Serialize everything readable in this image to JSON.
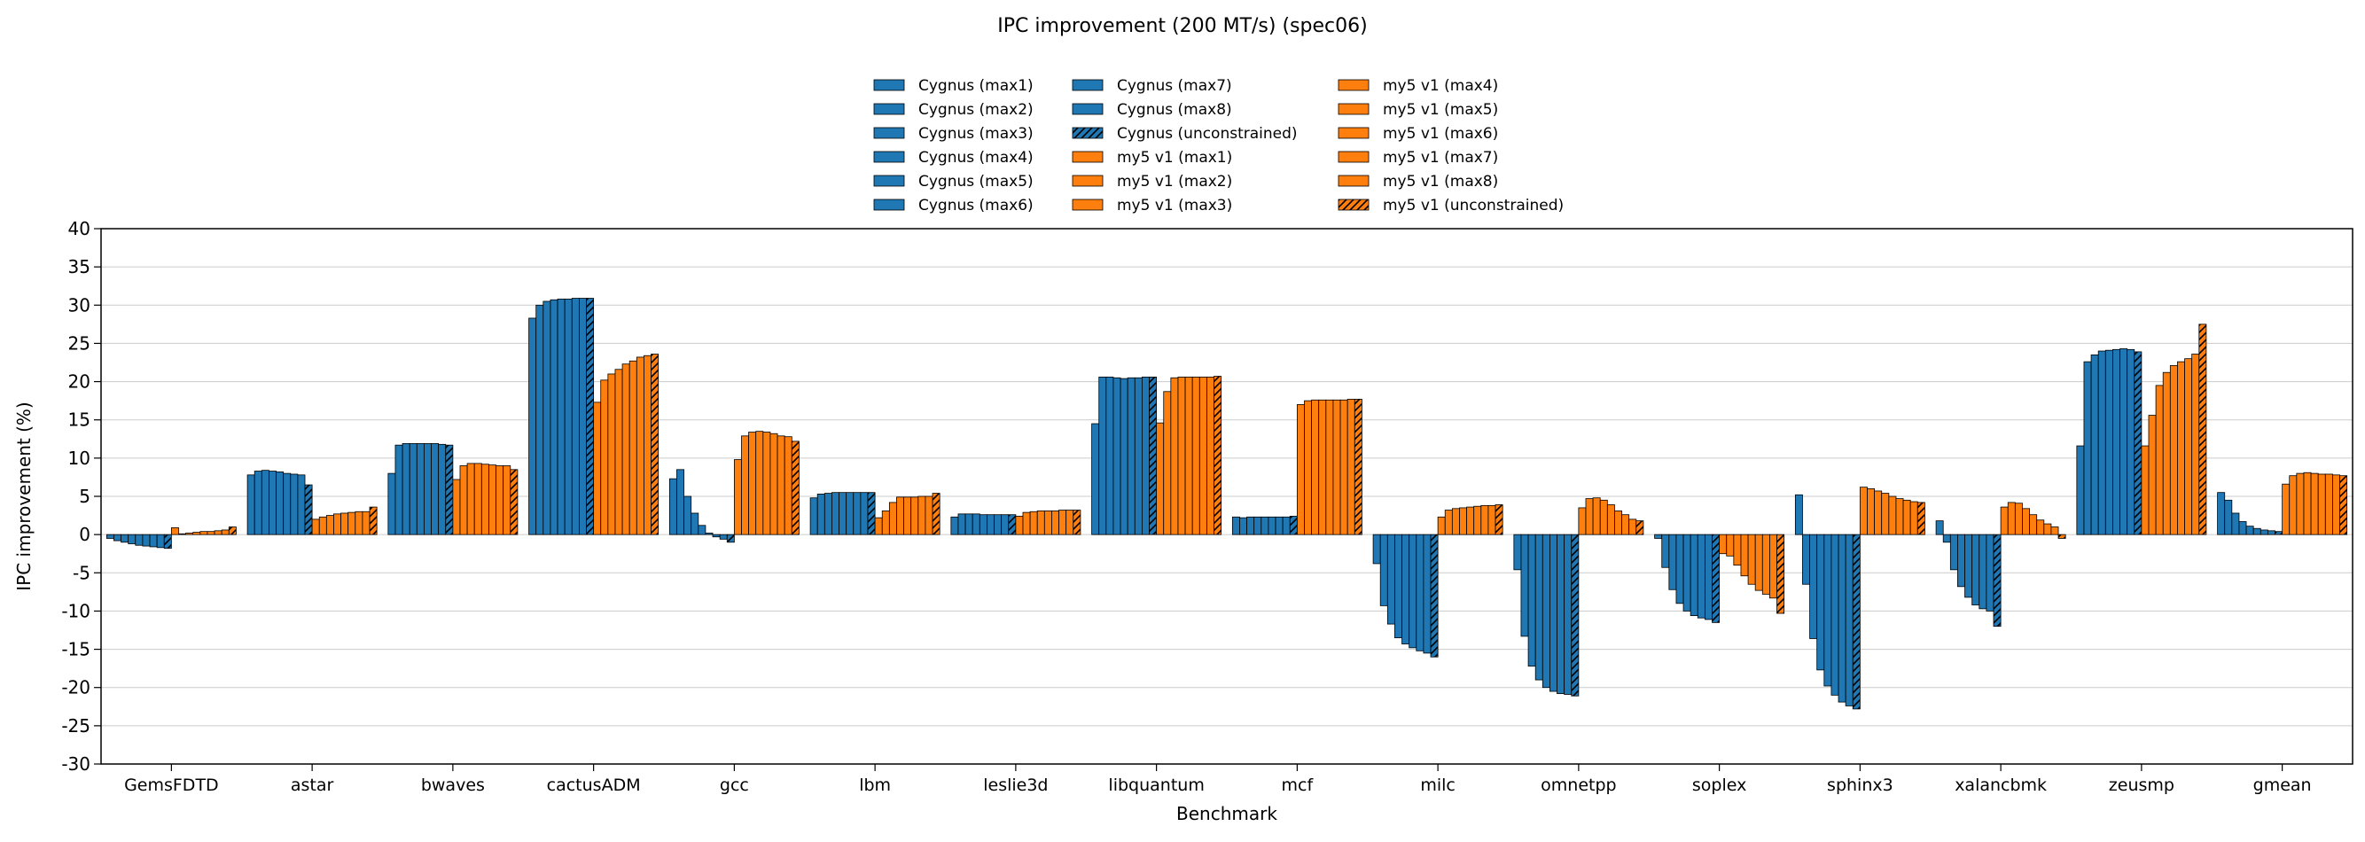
{
  "chart_data": {
    "type": "bar",
    "title": "IPC improvement (200 MT/s) (spec06)",
    "xlabel": "Benchmark",
    "ylabel": "IPC improvement (%)",
    "ylim": [
      -30,
      40
    ],
    "yticks": [
      -30,
      -25,
      -20,
      -15,
      -10,
      -5,
      0,
      5,
      10,
      15,
      20,
      25,
      30,
      35,
      40
    ],
    "grid": "horizontal",
    "legend_placement": "top-center",
    "colors": {
      "Cygnus": "#1f77b4",
      "my5 v1": "#ff7f0e"
    },
    "categories": [
      "GemsFDTD",
      "astar",
      "bwaves",
      "cactusADM",
      "gcc",
      "lbm",
      "leslie3d",
      "libquantum",
      "mcf",
      "milc",
      "omnetpp",
      "soplex",
      "sphinx3",
      "xalancbmk",
      "zeusmp",
      "gmean"
    ],
    "series": [
      {
        "name": "Cygnus (max1)",
        "group": "Cygnus",
        "hatch": false,
        "values": [
          -0.5,
          7.8,
          8.0,
          28.3,
          7.3,
          4.8,
          2.3,
          14.5,
          2.3,
          -3.8,
          -4.6,
          -0.5,
          5.2,
          1.8,
          11.6,
          5.5
        ]
      },
      {
        "name": "Cygnus (max2)",
        "group": "Cygnus",
        "hatch": false,
        "values": [
          -0.8,
          8.3,
          11.7,
          30.0,
          8.5,
          5.3,
          2.7,
          20.6,
          2.2,
          -9.3,
          -13.3,
          -4.3,
          -6.5,
          -1.0,
          22.6,
          4.5
        ]
      },
      {
        "name": "Cygnus (max3)",
        "group": "Cygnus",
        "hatch": false,
        "values": [
          -1.0,
          8.4,
          11.9,
          30.5,
          5.0,
          5.4,
          2.7,
          20.6,
          2.3,
          -11.7,
          -17.2,
          -7.2,
          -13.6,
          -4.6,
          23.5,
          2.8
        ]
      },
      {
        "name": "Cygnus (max4)",
        "group": "Cygnus",
        "hatch": false,
        "values": [
          -1.2,
          8.3,
          11.9,
          30.7,
          2.8,
          5.5,
          2.7,
          20.5,
          2.3,
          -13.5,
          -19.0,
          -9.0,
          -17.7,
          -6.8,
          24.0,
          1.7
        ]
      },
      {
        "name": "Cygnus (max5)",
        "group": "Cygnus",
        "hatch": false,
        "values": [
          -1.4,
          8.2,
          11.9,
          30.8,
          1.2,
          5.5,
          2.6,
          20.4,
          2.3,
          -14.3,
          -20.0,
          -10.0,
          -19.8,
          -8.2,
          24.1,
          1.1
        ]
      },
      {
        "name": "Cygnus (max6)",
        "group": "Cygnus",
        "hatch": false,
        "values": [
          -1.5,
          8.0,
          11.9,
          30.8,
          0.2,
          5.5,
          2.6,
          20.5,
          2.3,
          -14.8,
          -20.5,
          -10.6,
          -21.0,
          -9.2,
          24.2,
          0.8
        ]
      },
      {
        "name": "Cygnus (max7)",
        "group": "Cygnus",
        "hatch": false,
        "values": [
          -1.6,
          7.9,
          11.9,
          30.9,
          -0.3,
          5.5,
          2.6,
          20.5,
          2.3,
          -15.2,
          -20.8,
          -10.9,
          -21.9,
          -9.7,
          24.3,
          0.6
        ]
      },
      {
        "name": "Cygnus (max8)",
        "group": "Cygnus",
        "hatch": false,
        "values": [
          -1.7,
          7.8,
          11.8,
          30.9,
          -0.6,
          5.5,
          2.6,
          20.6,
          2.3,
          -15.5,
          -20.9,
          -11.1,
          -22.4,
          -10.0,
          24.2,
          0.5
        ]
      },
      {
        "name": "Cygnus (unconstrained)",
        "group": "Cygnus",
        "hatch": true,
        "values": [
          -1.8,
          6.5,
          11.7,
          30.9,
          -1.0,
          5.5,
          2.6,
          20.6,
          2.4,
          -16.0,
          -21.1,
          -11.5,
          -22.8,
          -12.0,
          23.9,
          0.4
        ]
      },
      {
        "name": "my5 v1 (max1)",
        "group": "my5 v1",
        "hatch": false,
        "values": [
          0.9,
          2.0,
          7.2,
          17.3,
          9.8,
          2.2,
          2.4,
          14.6,
          17.0,
          2.3,
          3.5,
          -2.5,
          6.2,
          3.6,
          11.6,
          6.6
        ]
      },
      {
        "name": "my5 v1 (max2)",
        "group": "my5 v1",
        "hatch": false,
        "values": [
          0.1,
          2.3,
          9.0,
          20.2,
          12.9,
          3.1,
          2.9,
          18.7,
          17.5,
          3.2,
          4.7,
          -2.8,
          6.0,
          4.2,
          15.6,
          7.7
        ]
      },
      {
        "name": "my5 v1 (max3)",
        "group": "my5 v1",
        "hatch": false,
        "values": [
          0.2,
          2.5,
          9.3,
          21.0,
          13.4,
          4.2,
          3.0,
          20.5,
          17.6,
          3.4,
          4.8,
          -4.0,
          5.7,
          4.1,
          19.5,
          8.0
        ]
      },
      {
        "name": "my5 v1 (max4)",
        "group": "my5 v1",
        "hatch": false,
        "values": [
          0.3,
          2.7,
          9.3,
          21.6,
          13.5,
          4.9,
          3.1,
          20.6,
          17.6,
          3.5,
          4.5,
          -5.4,
          5.4,
          3.4,
          21.2,
          8.1
        ]
      },
      {
        "name": "my5 v1 (max5)",
        "group": "my5 v1",
        "hatch": false,
        "values": [
          0.4,
          2.8,
          9.2,
          22.3,
          13.4,
          4.9,
          3.1,
          20.6,
          17.6,
          3.6,
          3.9,
          -6.5,
          5.0,
          2.6,
          22.1,
          8.0
        ]
      },
      {
        "name": "my5 v1 (max6)",
        "group": "my5 v1",
        "hatch": false,
        "values": [
          0.4,
          2.9,
          9.1,
          22.7,
          13.2,
          4.9,
          3.1,
          20.6,
          17.6,
          3.7,
          3.1,
          -7.3,
          4.7,
          1.9,
          22.6,
          7.9
        ]
      },
      {
        "name": "my5 v1 (max7)",
        "group": "my5 v1",
        "hatch": false,
        "values": [
          0.5,
          3.0,
          9.0,
          23.2,
          12.9,
          5.0,
          3.2,
          20.6,
          17.6,
          3.8,
          2.6,
          -7.8,
          4.5,
          1.4,
          23.0,
          7.9
        ]
      },
      {
        "name": "my5 v1 (max8)",
        "group": "my5 v1",
        "hatch": false,
        "values": [
          0.6,
          3.0,
          9.0,
          23.4,
          12.8,
          5.0,
          3.2,
          20.6,
          17.7,
          3.8,
          2.0,
          -8.3,
          4.3,
          1.0,
          23.6,
          7.8
        ]
      },
      {
        "name": "my5 v1 (unconstrained)",
        "group": "my5 v1",
        "hatch": true,
        "values": [
          1.0,
          3.6,
          8.5,
          23.6,
          12.2,
          5.4,
          3.2,
          20.7,
          17.7,
          3.9,
          1.8,
          -10.3,
          4.2,
          -0.5,
          27.5,
          7.7
        ]
      }
    ]
  }
}
